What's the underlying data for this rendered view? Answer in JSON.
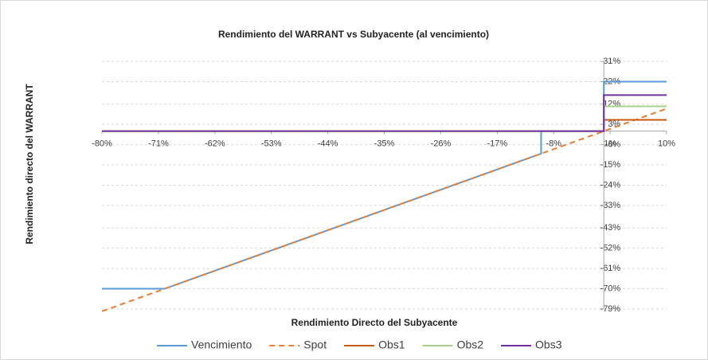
{
  "chart_data": {
    "type": "line",
    "title": "Rendimiento del WARRANT vs Subyacente (al vencimiento)",
    "x_label": "Rendimiento Directo del Subyacente",
    "y_label": "Rendimiento directo del WARRANT",
    "xlim": [
      -80,
      10
    ],
    "ylim": [
      -79,
      31
    ],
    "xticks": [
      {
        "value": -80,
        "label": "-80%"
      },
      {
        "value": -71,
        "label": "-71%"
      },
      {
        "value": -62,
        "label": "-62%"
      },
      {
        "value": -53,
        "label": "-53%"
      },
      {
        "value": -44,
        "label": "-44%"
      },
      {
        "value": -35,
        "label": "-35%"
      },
      {
        "value": -26,
        "label": "-26%"
      },
      {
        "value": -17,
        "label": "-17%"
      },
      {
        "value": -8,
        "label": "-8%"
      },
      {
        "value": 1,
        "label": "1%"
      },
      {
        "value": 10,
        "label": "10%"
      }
    ],
    "yticks": [
      {
        "value": 31,
        "label": "31%"
      },
      {
        "value": 22,
        "label": "22%"
      },
      {
        "value": 12,
        "label": "12%"
      },
      {
        "value": 3,
        "label": "3%"
      },
      {
        "value": -6,
        "label": "-6%"
      },
      {
        "value": -15,
        "label": "-15%"
      },
      {
        "value": -24,
        "label": "-24%"
      },
      {
        "value": -33,
        "label": "-33%"
      },
      {
        "value": -43,
        "label": "-43%"
      },
      {
        "value": -52,
        "label": "-52%"
      },
      {
        "value": -61,
        "label": "-61%"
      },
      {
        "value": -70,
        "label": "-70%"
      },
      {
        "value": -79,
        "label": "-79%"
      }
    ],
    "grid": true,
    "legend": "bottom",
    "series": [
      {
        "name": "Vencimiento",
        "color": "#5b9bd5",
        "dashed": false,
        "x": [
          -80,
          -70,
          -10,
          -10,
          0,
          0,
          10
        ],
        "values": [
          -70,
          -70,
          -10,
          0,
          0,
          22,
          22
        ]
      },
      {
        "name": "Spot",
        "color": "#ed7d31",
        "dashed": true,
        "x": [
          -80,
          10
        ],
        "values": [
          -80,
          10
        ]
      },
      {
        "name": "Obs1",
        "color": "#c55a11",
        "dashed": false,
        "x": [
          -80,
          0,
          0,
          10
        ],
        "values": [
          0,
          0,
          5,
          5
        ]
      },
      {
        "name": "Obs2",
        "color": "#a9d18e",
        "dashed": false,
        "x": [
          -80,
          0,
          0,
          10
        ],
        "values": [
          0,
          0,
          11,
          11
        ]
      },
      {
        "name": "Obs3",
        "color": "#7030a0",
        "dashed": false,
        "x": [
          -80,
          0,
          0,
          10
        ],
        "values": [
          0,
          0,
          16,
          16
        ]
      }
    ]
  }
}
